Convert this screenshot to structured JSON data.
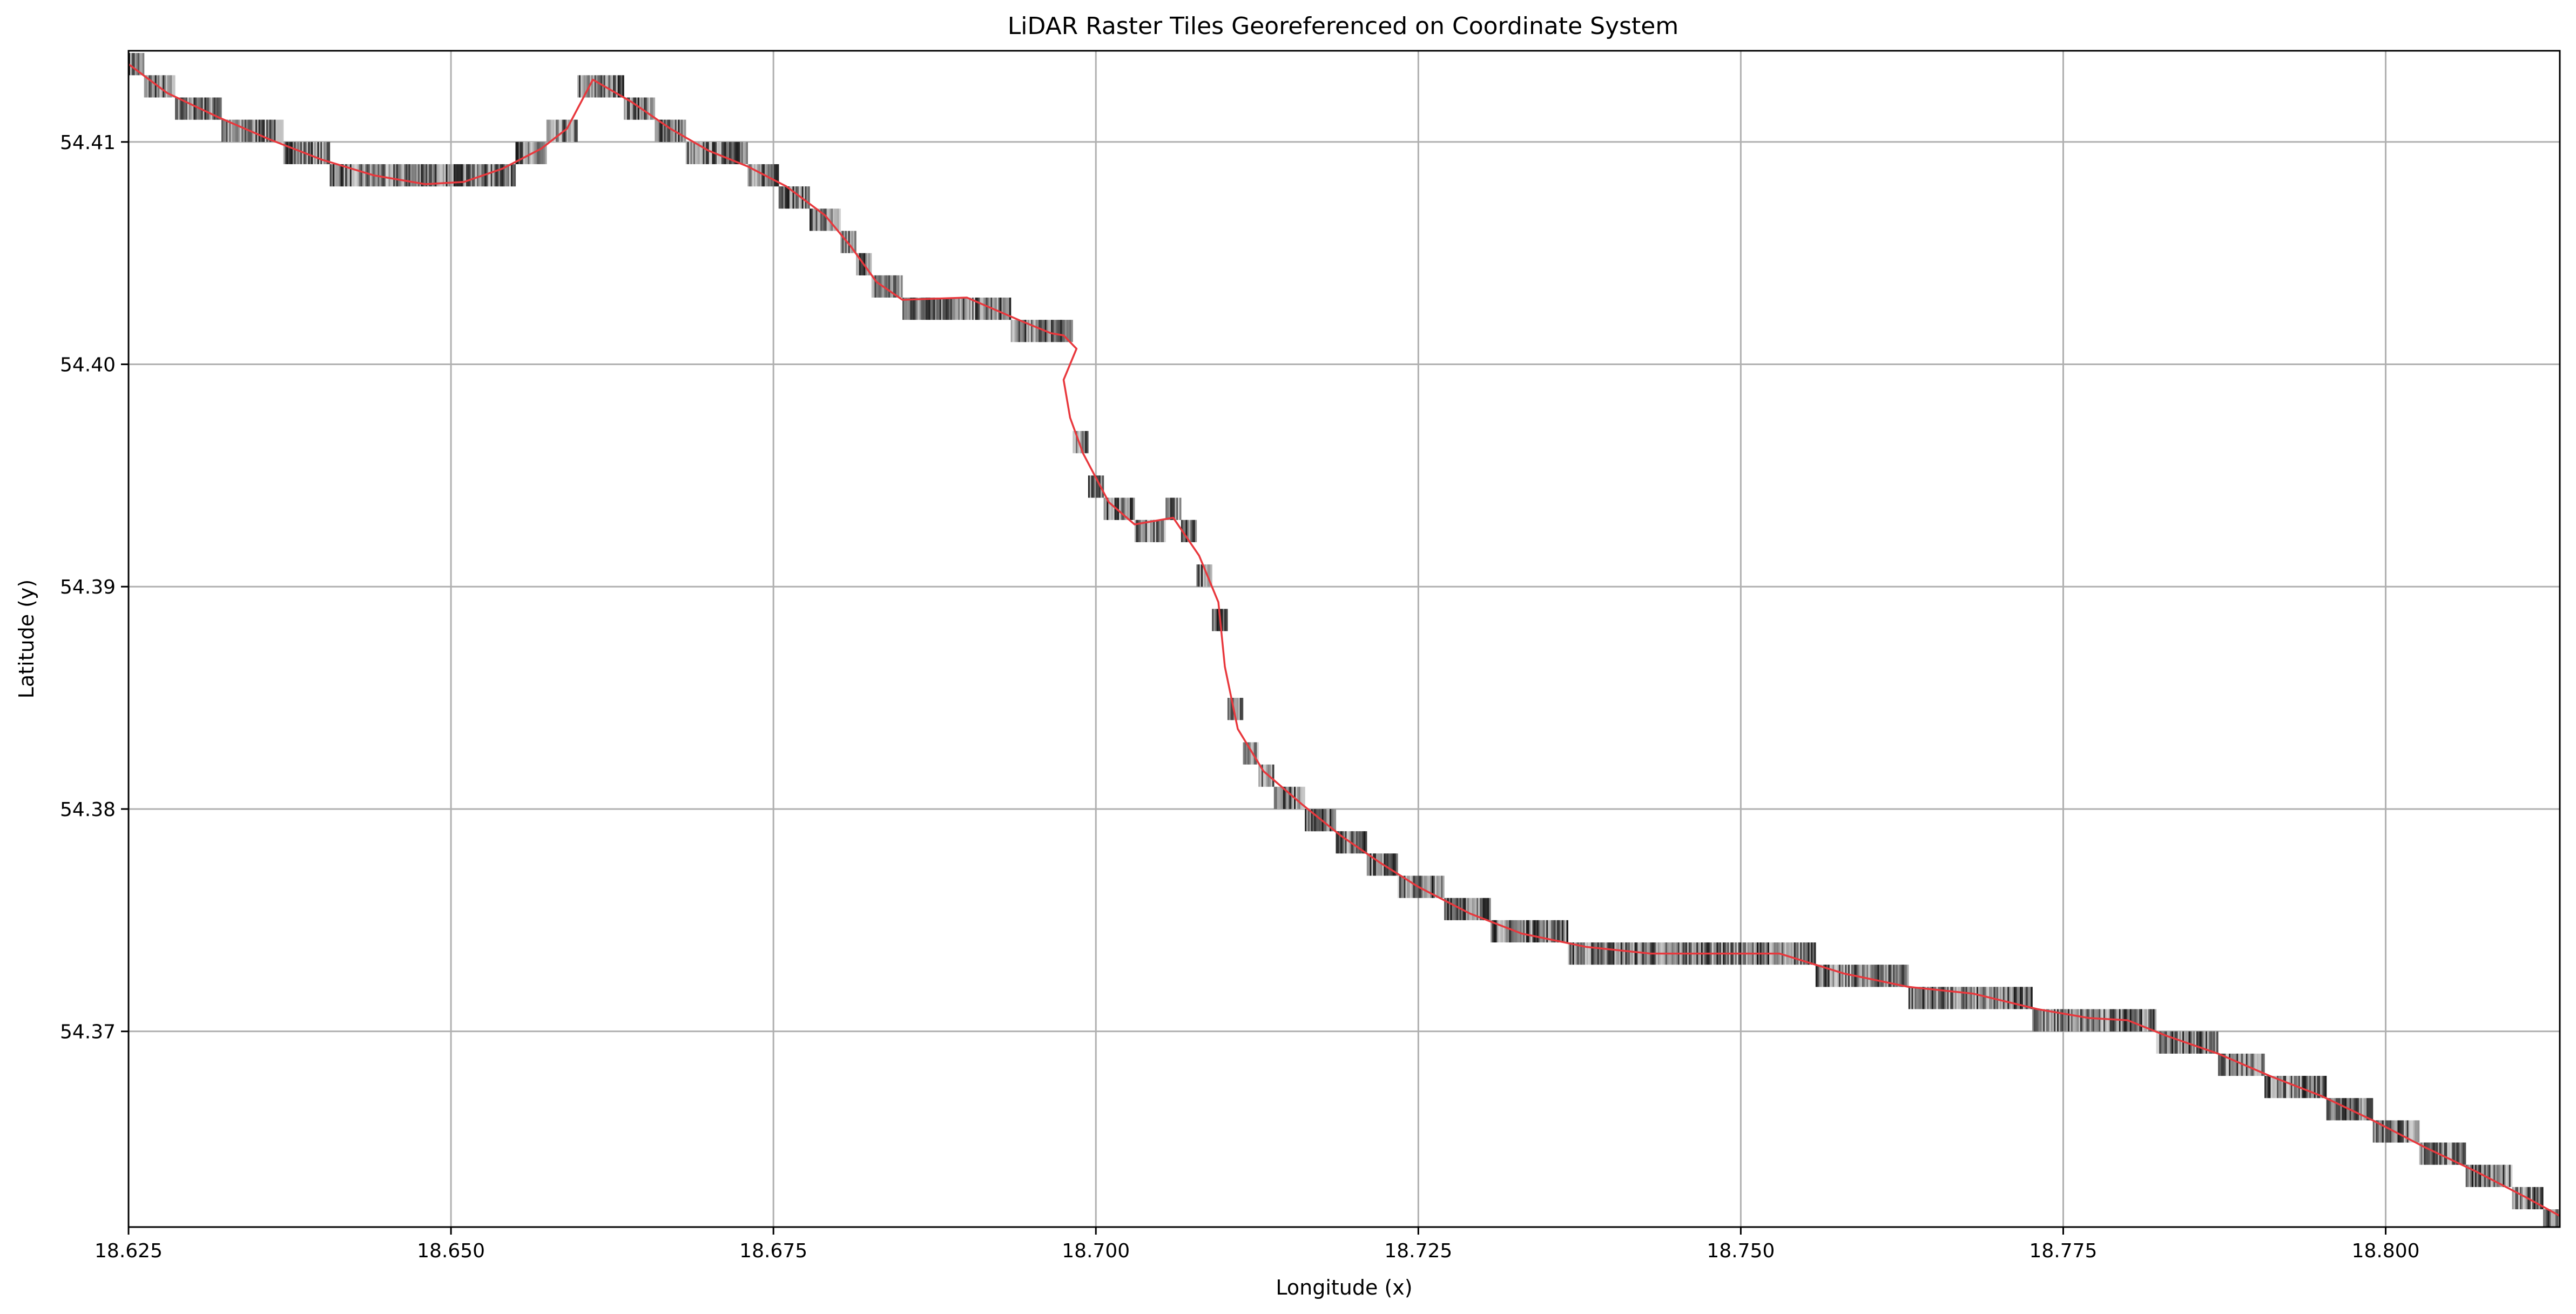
{
  "chart_data": {
    "type": "line",
    "title": "LiDAR Raster Tiles Georeferenced on Coordinate System",
    "xlabel": "Longitude (x)",
    "ylabel": "Latitude (y)",
    "xlim": [
      18.625,
      18.8135
    ],
    "ylim": [
      54.3612,
      54.4141
    ],
    "x_ticks": [
      18.625,
      18.65,
      18.675,
      18.7,
      18.725,
      18.75,
      18.775,
      18.8
    ],
    "x_tick_labels": [
      "18.625",
      "18.650",
      "18.675",
      "18.700",
      "18.725",
      "18.750",
      "18.775",
      "18.800"
    ],
    "y_ticks": [
      54.37,
      54.38,
      54.39,
      54.4,
      54.41
    ],
    "y_tick_labels": [
      "54.37",
      "54.38",
      "54.39",
      "54.40",
      "54.41"
    ],
    "grid": true,
    "colors": {
      "track": "#e8383d",
      "grid": "#b0b0b0",
      "axes": "#000000"
    },
    "series": [
      {
        "kind": "track-line",
        "x": [
          18.625,
          18.628,
          18.632,
          18.636,
          18.64,
          18.644,
          18.648,
          18.651,
          18.654,
          18.657,
          18.659,
          18.661,
          18.664,
          18.667,
          18.67,
          18.673,
          18.676,
          18.679,
          18.681,
          18.683,
          18.685,
          18.69,
          18.694,
          18.6965,
          18.6975,
          18.6985,
          18.6975,
          18.698,
          18.699,
          18.701,
          18.703,
          18.706,
          18.708,
          18.7095,
          18.71,
          18.711,
          18.713,
          18.716,
          18.719,
          18.722,
          18.725,
          18.729,
          18.733,
          18.738,
          18.743,
          18.748,
          18.753,
          18.758,
          18.763,
          18.768,
          18.773,
          18.777,
          18.78,
          18.783,
          18.787,
          18.791,
          18.795,
          18.799,
          18.803,
          18.807,
          18.811,
          18.8135
        ],
        "y": [
          54.4135,
          54.4122,
          54.4111,
          54.4101,
          54.4092,
          54.4085,
          54.4081,
          54.4082,
          54.4088,
          54.4097,
          54.4106,
          54.4128,
          54.4118,
          54.4106,
          54.4096,
          54.4089,
          54.408,
          54.4067,
          54.4053,
          54.4037,
          54.4029,
          54.403,
          54.402,
          54.4014,
          54.4013,
          54.4007,
          54.3993,
          54.3976,
          54.396,
          54.3938,
          54.3928,
          54.3931,
          54.3914,
          54.3893,
          54.3864,
          54.3836,
          54.3817,
          54.3802,
          54.3788,
          54.3776,
          54.3765,
          54.3753,
          54.3744,
          54.3738,
          54.3735,
          54.3735,
          54.3735,
          54.3726,
          54.372,
          54.3717,
          54.371,
          54.3706,
          54.3705,
          54.3698,
          54.369,
          54.368,
          54.3671,
          54.366,
          54.3648,
          54.3637,
          54.3625,
          54.3617
        ]
      }
    ]
  }
}
